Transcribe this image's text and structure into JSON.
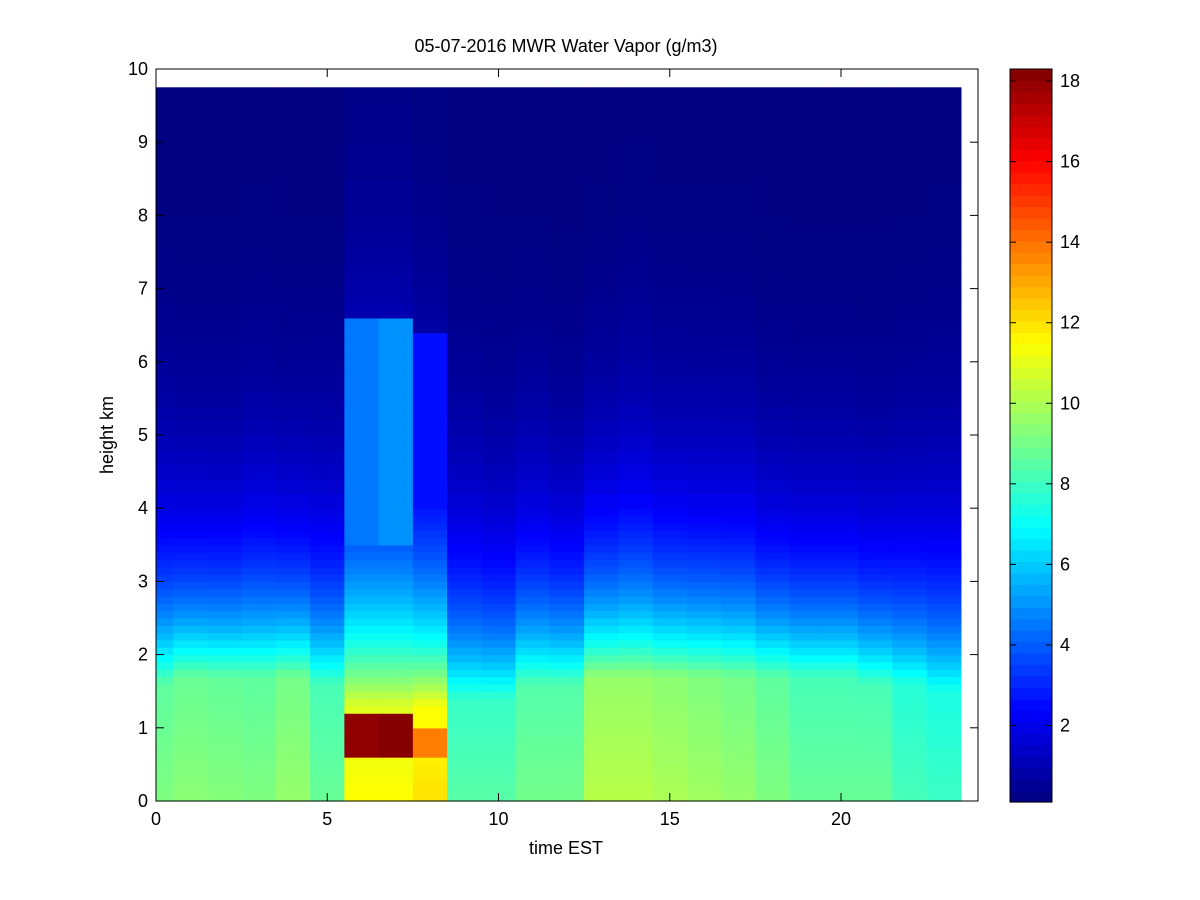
{
  "chart_data": {
    "type": "heatmap",
    "title": "05-07-2016 MWR Water Vapor (g/m3)",
    "xlabel": "time EST",
    "ylabel": "height km",
    "xlim": [
      0,
      24
    ],
    "ylim": [
      0,
      10
    ],
    "clim": [
      0.1,
      18.3
    ],
    "colormap": "jet",
    "x_ticks": [
      0,
      5,
      10,
      15,
      20
    ],
    "y_ticks": [
      0,
      1,
      2,
      3,
      4,
      5,
      6,
      7,
      8,
      9,
      10
    ],
    "colorbar_ticks": [
      2,
      4,
      6,
      8,
      10,
      12,
      14,
      16,
      18
    ],
    "x_centers": [
      0,
      1,
      2,
      3,
      4,
      5,
      6,
      7,
      8,
      9,
      10,
      11,
      12,
      13,
      14,
      15,
      16,
      17,
      18,
      19,
      20,
      21,
      22,
      23
    ],
    "height_levels_km": [
      0.0,
      0.1,
      0.2,
      0.3,
      0.4,
      0.5,
      0.6,
      0.7,
      0.8,
      0.9,
      1.0,
      1.1,
      1.2,
      1.3,
      1.4,
      1.5,
      1.6,
      1.7,
      1.8,
      1.9,
      2.0,
      2.1,
      2.2,
      2.3,
      2.4,
      2.5,
      2.6,
      2.7,
      2.8,
      2.9,
      3.0,
      3.1,
      3.2,
      3.3,
      3.4,
      3.5,
      3.6,
      3.7,
      3.8,
      3.9,
      4.0,
      4.2,
      4.4,
      4.6,
      4.8,
      5.0,
      5.2,
      5.4,
      5.6,
      5.8,
      6.0,
      6.2,
      6.4,
      6.6,
      6.8,
      7.0,
      7.2,
      7.4,
      7.6,
      7.8,
      8.0,
      8.5,
      9.0,
      9.5,
      9.75
    ],
    "profile_model": {
      "surface_value": [
        9.2,
        9.4,
        9.3,
        9.2,
        9.6,
        8.8,
        11.5,
        11.5,
        12.0,
        8.5,
        8.5,
        9.0,
        9.0,
        10.2,
        10.2,
        10.0,
        9.8,
        9.6,
        9.2,
        8.8,
        8.8,
        8.8,
        8.2,
        8.0
      ],
      "moist_layer_top_km": [
        1.6,
        1.7,
        1.7,
        1.7,
        1.7,
        1.6,
        1.3,
        1.3,
        1.3,
        1.4,
        1.4,
        1.6,
        1.6,
        1.7,
        1.7,
        1.7,
        1.7,
        1.7,
        1.7,
        1.7,
        1.7,
        1.6,
        1.6,
        1.5
      ],
      "scale_height_km": [
        1.6,
        1.5,
        1.5,
        1.6,
        1.5,
        1.6,
        2.2,
        2.2,
        1.9,
        1.7,
        1.6,
        1.6,
        1.5,
        1.6,
        1.7,
        1.6,
        1.6,
        1.6,
        1.5,
        1.5,
        1.5,
        1.5,
        1.6,
        1.7
      ],
      "extra_layer": [
        {
          "x": 6,
          "bottom_km": 0.6,
          "top_km": 1.2,
          "peak": 18.0
        },
        {
          "x": 7,
          "bottom_km": 0.6,
          "top_km": 1.2,
          "peak": 18.2
        },
        {
          "x": 8,
          "bottom_km": 0.6,
          "top_km": 1.0,
          "peak": 13.8
        },
        {
          "x": 6,
          "bottom_km": 3.5,
          "top_km": 6.6,
          "peak": 4.5
        },
        {
          "x": 7,
          "bottom_km": 3.5,
          "top_km": 6.6,
          "peak": 5.0
        },
        {
          "x": 8,
          "bottom_km": 3.5,
          "top_km": 6.4,
          "peak": 2.6
        }
      ]
    }
  }
}
